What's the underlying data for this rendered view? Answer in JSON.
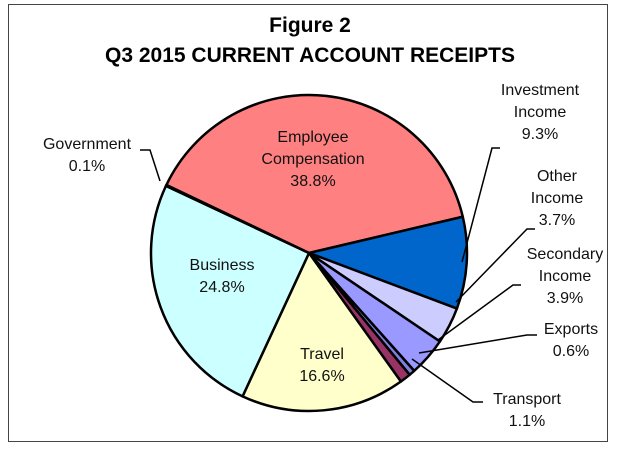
{
  "chart_data": {
    "type": "pie",
    "title": "Figure 2",
    "subtitle": "Q3 2015 CURRENT ACCOUNT RECEIPTS",
    "slices": [
      {
        "label": "Employee Compensation",
        "label_lines": [
          "Employee",
          "Compensation"
        ],
        "value": 38.8,
        "value_label": "38.8%",
        "color": "#ff8080"
      },
      {
        "label": "Investment Income",
        "label_lines": [
          "Investment",
          "Income"
        ],
        "value": 9.3,
        "value_label": "9.3%",
        "color": "#0066cc"
      },
      {
        "label": "Other Income",
        "label_lines": [
          "Other",
          "Income"
        ],
        "value": 3.7,
        "value_label": "3.7%",
        "color": "#ccccff"
      },
      {
        "label": "Secondary Income",
        "label_lines": [
          "Secondary",
          "Income"
        ],
        "value": 3.9,
        "value_label": "3.9%",
        "color": "#9999ff"
      },
      {
        "label": "Exports",
        "label_lines": [
          "Exports"
        ],
        "value": 0.6,
        "value_label": "0.6%",
        "color": "#8080e0"
      },
      {
        "label": "Transport",
        "label_lines": [
          "Transport"
        ],
        "value": 1.1,
        "value_label": "1.1%",
        "color": "#993366"
      },
      {
        "label": "Travel",
        "label_lines": [
          "Travel"
        ],
        "value": 16.6,
        "value_label": "16.6%",
        "color": "#ffffcc"
      },
      {
        "label": "Business",
        "label_lines": [
          "Business"
        ],
        "value": 24.8,
        "value_label": "24.8%",
        "color": "#ccffff"
      },
      {
        "label": "Government",
        "label_lines": [
          "Government"
        ],
        "value": 0.1,
        "value_label": "0.1%",
        "color": "#c0c0c0"
      }
    ]
  }
}
